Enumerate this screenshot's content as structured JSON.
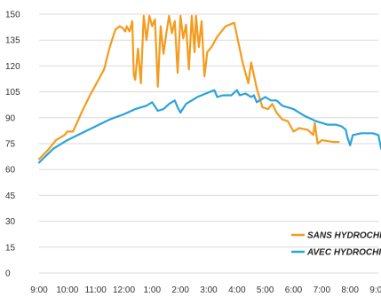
{
  "chart_data": {
    "type": "line",
    "title": "",
    "xlabel": "",
    "ylabel": "",
    "ylim": [
      0,
      150
    ],
    "yticks": [
      0,
      15,
      30,
      45,
      60,
      75,
      90,
      105,
      120,
      135,
      150
    ],
    "x_tick_labels": [
      "9:00",
      "10:00",
      "11:00",
      "12:00",
      "1:00",
      "2:00",
      "3:00",
      "4:00",
      "5:00",
      "6:00",
      "7:00",
      "8:00",
      "9:00"
    ],
    "grid": "horizontal",
    "legend_position": "bottom-right",
    "series": [
      {
        "name": "SANS HYDROCHILL",
        "color": "#F39C1E",
        "points": [
          [
            0,
            66
          ],
          [
            0.3,
            71
          ],
          [
            0.6,
            77
          ],
          [
            0.9,
            80
          ],
          [
            1.0,
            82
          ],
          [
            1.2,
            82
          ],
          [
            1.5,
            93
          ],
          [
            1.8,
            103
          ],
          [
            2.0,
            109
          ],
          [
            2.3,
            118
          ],
          [
            2.5,
            131
          ],
          [
            2.7,
            141
          ],
          [
            2.85,
            143
          ],
          [
            2.95,
            142
          ],
          [
            3.05,
            140
          ],
          [
            3.1,
            143
          ],
          [
            3.2,
            140
          ],
          [
            3.3,
            146
          ],
          [
            3.35,
            115
          ],
          [
            3.4,
            112
          ],
          [
            3.5,
            130
          ],
          [
            3.6,
            110
          ],
          [
            3.7,
            149
          ],
          [
            3.8,
            135
          ],
          [
            3.9,
            149
          ],
          [
            4.0,
            143
          ],
          [
            4.1,
            147
          ],
          [
            4.2,
            108
          ],
          [
            4.3,
            143
          ],
          [
            4.4,
            127
          ],
          [
            4.5,
            139
          ],
          [
            4.6,
            149
          ],
          [
            4.7,
            139
          ],
          [
            4.8,
            146
          ],
          [
            4.9,
            116
          ],
          [
            5.0,
            149
          ],
          [
            5.1,
            136
          ],
          [
            5.2,
            144
          ],
          [
            5.3,
            118
          ],
          [
            5.4,
            149
          ],
          [
            5.5,
            128
          ],
          [
            5.55,
            149
          ],
          [
            5.65,
            131
          ],
          [
            5.75,
            146
          ],
          [
            5.85,
            114
          ],
          [
            5.95,
            128
          ],
          [
            6.1,
            131
          ],
          [
            6.3,
            137
          ],
          [
            6.6,
            143
          ],
          [
            6.9,
            145
          ],
          [
            7.2,
            122
          ],
          [
            7.4,
            110
          ],
          [
            7.5,
            122
          ],
          [
            7.7,
            107
          ],
          [
            7.9,
            96
          ],
          [
            8.1,
            95
          ],
          [
            8.25,
            98
          ],
          [
            8.4,
            93
          ],
          [
            8.6,
            89
          ],
          [
            8.8,
            88
          ],
          [
            9.0,
            82
          ],
          [
            9.2,
            84
          ],
          [
            9.5,
            83
          ],
          [
            9.7,
            80
          ],
          [
            9.75,
            87
          ],
          [
            9.8,
            81
          ],
          [
            9.85,
            75
          ],
          [
            10.0,
            77
          ],
          [
            10.4,
            76
          ],
          [
            10.6,
            76
          ]
        ]
      },
      {
        "name": "AVEC HYDROCHILL",
        "color": "#2AA3DB",
        "points": [
          [
            0,
            64
          ],
          [
            0.5,
            72
          ],
          [
            1.0,
            77
          ],
          [
            1.5,
            81
          ],
          [
            2.0,
            85
          ],
          [
            2.5,
            89
          ],
          [
            3.0,
            92
          ],
          [
            3.4,
            95
          ],
          [
            3.8,
            97
          ],
          [
            4.0,
            99
          ],
          [
            4.2,
            94
          ],
          [
            4.4,
            95
          ],
          [
            4.6,
            98
          ],
          [
            4.8,
            100
          ],
          [
            4.9,
            96
          ],
          [
            5.0,
            93
          ],
          [
            5.2,
            98
          ],
          [
            5.4,
            100
          ],
          [
            5.6,
            102
          ],
          [
            5.9,
            104
          ],
          [
            6.2,
            106
          ],
          [
            6.3,
            102
          ],
          [
            6.5,
            103
          ],
          [
            6.8,
            103
          ],
          [
            7.0,
            106
          ],
          [
            7.1,
            103
          ],
          [
            7.3,
            104
          ],
          [
            7.5,
            102
          ],
          [
            7.6,
            103
          ],
          [
            7.7,
            99
          ],
          [
            7.8,
            100
          ],
          [
            8.0,
            102
          ],
          [
            8.2,
            100
          ],
          [
            8.4,
            100
          ],
          [
            8.6,
            97
          ],
          [
            9.0,
            95
          ],
          [
            9.4,
            91
          ],
          [
            9.8,
            88
          ],
          [
            10.2,
            86
          ],
          [
            10.5,
            86
          ],
          [
            10.7,
            85
          ],
          [
            10.85,
            83
          ],
          [
            10.9,
            79
          ],
          [
            11.0,
            74
          ],
          [
            11.1,
            80
          ],
          [
            11.4,
            81
          ],
          [
            11.8,
            81
          ],
          [
            12.0,
            80
          ],
          [
            12.1,
            72
          ],
          [
            12.2,
            78
          ],
          [
            12.4,
            79
          ],
          [
            12.6,
            74
          ],
          [
            12.8,
            72
          ],
          [
            13.1,
            72
          ]
        ]
      }
    ]
  }
}
